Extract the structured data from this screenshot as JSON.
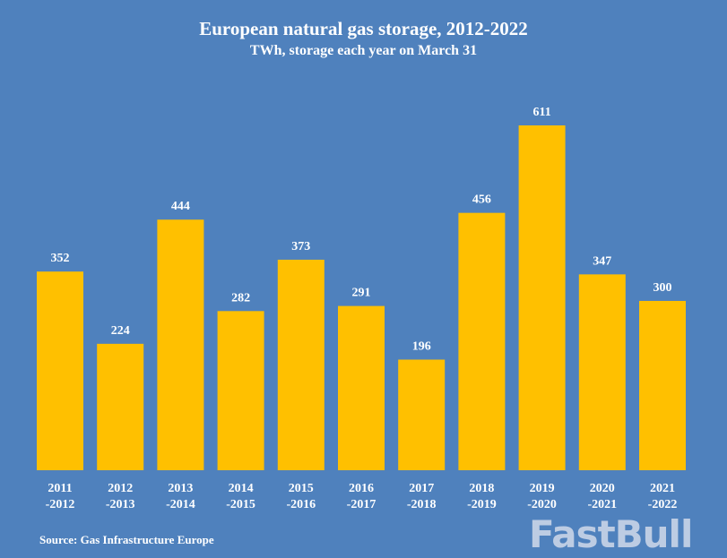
{
  "chart_data": {
    "type": "bar",
    "title": "European natural gas storage, 2012-2022",
    "subtitle": "TWh, storage each year on March 31",
    "categories": [
      "2011 -2012",
      "2012 -2013",
      "2013 -2014",
      "2014 -2015",
      "2015 -2016",
      "2016 -2017",
      "2017 -2018",
      "2018 -2019",
      "2019 -2020",
      "2020 -2021",
      "2021 -2022"
    ],
    "values": [
      352,
      224,
      444,
      282,
      373,
      291,
      196,
      456,
      611,
      347,
      300
    ],
    "xlabel": "",
    "ylabel": "",
    "ylim": [
      0,
      611
    ],
    "grid": false,
    "data_labels": true,
    "colors": {
      "background": "#4f81bd",
      "bar": "#ffc000",
      "text": "#ffffff"
    }
  },
  "source": "Source: Gas Infrastructure Europe",
  "watermark": "FastBull"
}
